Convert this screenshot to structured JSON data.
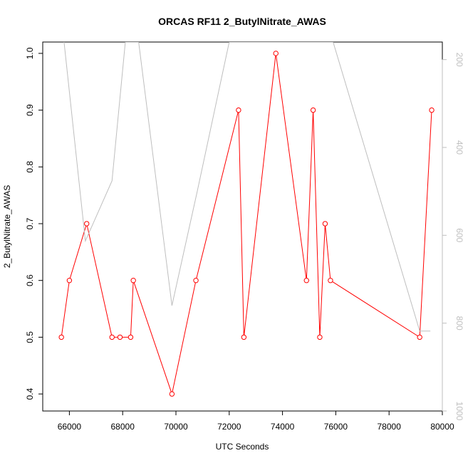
{
  "chart_data": {
    "type": "line",
    "title": "ORCAS RF11 2_ButylNitrate_AWAS",
    "xlabel": "UTC Seconds",
    "ylabel": "2_ButylNitrate_AWAS",
    "xlim": [
      65000,
      80000
    ],
    "ylim": [
      0.37,
      1.02
    ],
    "x_ticks": [
      66000,
      68000,
      70000,
      72000,
      74000,
      76000,
      78000,
      80000
    ],
    "y_ticks": [
      0.4,
      0.5,
      0.6,
      0.7,
      0.8,
      0.9,
      1.0
    ],
    "right_axis": {
      "reversed": true,
      "ylim": [
        1000,
        160
      ],
      "ticks": [
        200,
        400,
        600,
        800,
        1000
      ]
    },
    "series": [
      {
        "color": "#ff0000",
        "marker": "open-circle",
        "points": [
          [
            65700,
            0.5
          ],
          [
            66000,
            0.6
          ],
          [
            66650,
            0.7
          ],
          [
            67600,
            0.5
          ],
          [
            67900,
            0.5
          ],
          [
            68300,
            0.5
          ],
          [
            68400,
            0.6
          ],
          [
            69850,
            0.4
          ],
          [
            70750,
            0.6
          ],
          [
            72350,
            0.9
          ],
          [
            72550,
            0.5
          ],
          [
            73750,
            1.0
          ],
          [
            74900,
            0.6
          ],
          [
            75150,
            0.9
          ],
          [
            75400,
            0.5
          ],
          [
            75600,
            0.7
          ],
          [
            75800,
            0.6
          ],
          [
            79150,
            0.5
          ],
          [
            79600,
            0.9
          ]
        ]
      },
      {
        "color": "#bebebe",
        "axis": "right",
        "points": [
          [
            65800,
            160
          ],
          [
            66600,
            613
          ],
          [
            67600,
            476
          ],
          [
            68100,
            160
          ],
          [
            68600,
            160
          ],
          [
            69850,
            760
          ],
          [
            70800,
            500
          ],
          [
            72000,
            160
          ],
          [
            74200,
            160
          ],
          [
            74600,
            160
          ],
          [
            75000,
            160
          ],
          [
            75900,
            160
          ],
          [
            79150,
            818
          ],
          [
            79550,
            818
          ]
        ]
      }
    ]
  }
}
